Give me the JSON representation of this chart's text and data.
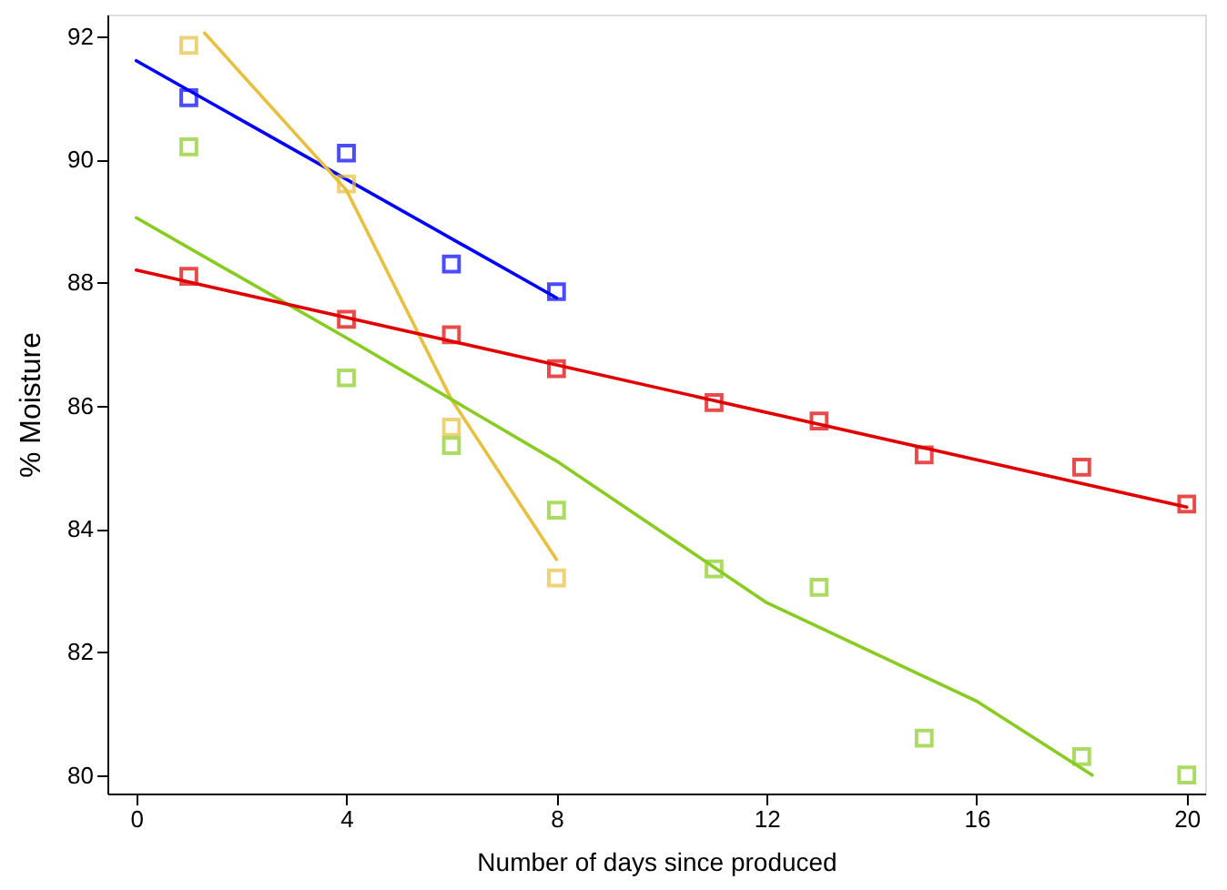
{
  "chart_data": {
    "type": "scatter",
    "xlabel": "Number of days since produced",
    "ylabel": "% Moisture",
    "xlim": [
      -0.55,
      20.35
    ],
    "ylim": [
      79.7,
      92.35
    ],
    "xticks": [
      0,
      4,
      8,
      12,
      16,
      20
    ],
    "yticks": [
      80,
      82,
      84,
      86,
      88,
      90,
      92
    ],
    "grid": false,
    "series": [
      {
        "marker": "square",
        "color": "#0000ff",
        "x": [
          1,
          4,
          6,
          8
        ],
        "values": [
          91.0,
          90.1,
          88.3,
          87.85
        ]
      },
      {
        "marker": "square",
        "color": "#e8c040",
        "x": [
          1,
          4,
          6,
          8
        ],
        "values": [
          91.85,
          89.6,
          85.65,
          83.2
        ]
      },
      {
        "marker": "square",
        "color": "#88cc22",
        "x": [
          1,
          4,
          6,
          8,
          11,
          13,
          15,
          18,
          20
        ],
        "values": [
          90.2,
          86.45,
          85.35,
          84.3,
          83.35,
          83.05,
          80.6,
          80.3,
          80.0
        ]
      },
      {
        "marker": "square",
        "color": "#e00000",
        "x": [
          1,
          4,
          6,
          8,
          11,
          13,
          15,
          18,
          20
        ],
        "values": [
          88.1,
          87.4,
          87.15,
          86.6,
          86.05,
          85.75,
          85.2,
          85.0,
          84.4
        ]
      },
      {
        "type": "line",
        "line_style": "solid",
        "marker": "none",
        "color": "#0000ff",
        "x": [
          0,
          8
        ],
        "values": [
          91.6,
          87.75
        ]
      },
      {
        "type": "line",
        "line_style": "solid",
        "marker": "none",
        "color": "#e8c040",
        "x": [
          1.3,
          4,
          6,
          8
        ],
        "values": [
          92.05,
          89.5,
          86.1,
          83.5
        ]
      },
      {
        "type": "line",
        "line_style": "solid",
        "marker": "none",
        "color": "#88cc22",
        "x": [
          0,
          4,
          8,
          12,
          16,
          18.2
        ],
        "values": [
          89.05,
          87.1,
          85.1,
          82.8,
          81.2,
          80.0
        ]
      },
      {
        "type": "line",
        "line_style": "solid",
        "marker": "none",
        "color": "#e00000",
        "x": [
          0,
          20
        ],
        "values": [
          88.2,
          84.35
        ]
      }
    ]
  }
}
